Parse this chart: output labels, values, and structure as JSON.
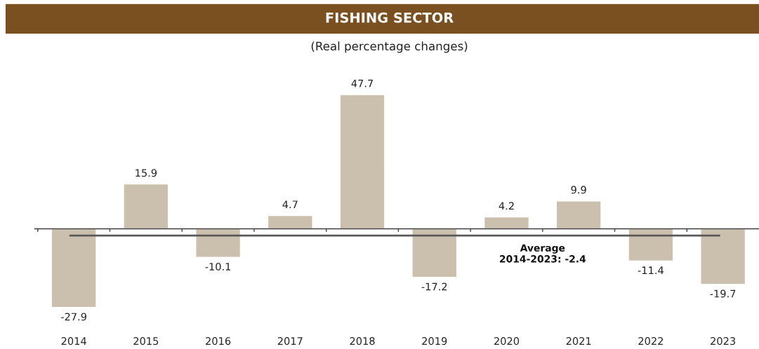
{
  "chart_data": {
    "type": "bar",
    "title": "FISHING SECTOR",
    "subtitle": "(Real percentage changes)",
    "categories": [
      "2014",
      "2015",
      "2016",
      "2017",
      "2018",
      "2019",
      "2020",
      "2021",
      "2022",
      "2023"
    ],
    "values": [
      -27.9,
      15.9,
      -10.1,
      4.7,
      47.7,
      -17.2,
      4.2,
      9.9,
      -11.4,
      -19.7
    ],
    "color": "#cbbfad",
    "data_labels": true,
    "grid": false,
    "legend": false,
    "ref_lines": [
      {
        "axis": "y",
        "value": -2.4,
        "label": "Average\n2014-2023: -2.4",
        "color": "#595959",
        "line_style": "solid"
      }
    ]
  }
}
